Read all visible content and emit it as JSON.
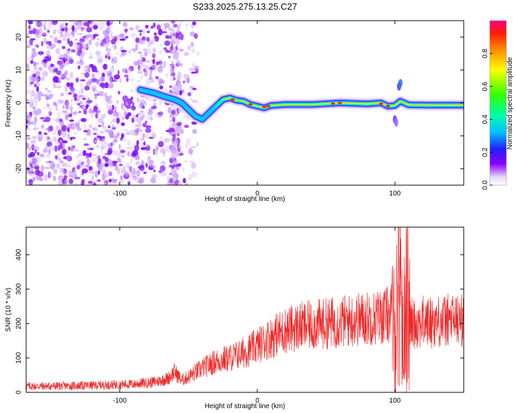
{
  "title": "S233.2025.275.13.25.C27",
  "chart_data": [
    {
      "type": "heatmap",
      "xlabel": "Height of straight line (km)",
      "ylabel": "Frequency (Hz)",
      "xlim": [
        -168,
        150
      ],
      "ylim": [
        -25,
        25
      ],
      "xticks": [
        -100,
        0,
        100
      ],
      "xtick_labels": [
        "-100",
        "0",
        "100"
      ],
      "yticks": [
        -20,
        -10,
        0,
        10,
        20
      ],
      "ytick_labels": [
        "-20",
        "-10",
        "0",
        "10",
        "20"
      ],
      "colorbar": {
        "label": "Normalized spectral amplitude",
        "range": [
          0,
          1
        ],
        "ticks": [
          0,
          0.2,
          0.4,
          0.6,
          0.8
        ],
        "tick_labels": [
          "0.0",
          "0.2",
          "0.4",
          "0.6",
          "0.8"
        ]
      },
      "ridge_line": {
        "x": [
          -85,
          -75,
          -68,
          -60,
          -55,
          -50,
          -45,
          -40,
          -35,
          -30,
          -25,
          -20,
          -15,
          -10,
          -5,
          0,
          5,
          10,
          20,
          40,
          60,
          80,
          90,
          95,
          100,
          104,
          110,
          130,
          150
        ],
        "y": [
          4,
          3,
          2,
          1,
          0,
          -2,
          -4,
          -5,
          -3,
          -1,
          1,
          1.5,
          0.8,
          0.5,
          -0.5,
          -1,
          -1.5,
          -0.8,
          -0.5,
          -0.5,
          0,
          -0.3,
          0,
          -1,
          -0.8,
          0.5,
          -0.6,
          -0.7,
          -0.7
        ]
      }
    },
    {
      "type": "line",
      "xlabel": "Height of straight line (km)",
      "ylabel": "SNR (10 * v/v)",
      "xlim": [
        -168,
        150
      ],
      "ylim": [
        0,
        480
      ],
      "xticks": [
        -100,
        0,
        100
      ],
      "xtick_labels": [
        "-100",
        "0",
        "100"
      ],
      "yticks": [
        0,
        100,
        200,
        300,
        400
      ],
      "ytick_labels": [
        "0",
        "100",
        "200",
        "300",
        "400"
      ],
      "color": "#ee2a2a",
      "series": [
        {
          "name": "SNR",
          "x": [
            -168,
            -150,
            -120,
            -90,
            -75,
            -65,
            -60,
            -55,
            -50,
            -40,
            -30,
            -20,
            -10,
            0,
            10,
            20,
            30,
            40,
            50,
            60,
            70,
            80,
            90,
            98,
            100,
            102,
            104,
            106,
            108,
            110,
            120,
            130,
            140,
            150
          ],
          "y": [
            18,
            18,
            20,
            24,
            30,
            40,
            60,
            35,
            45,
            70,
            90,
            100,
            115,
            135,
            160,
            180,
            190,
            195,
            200,
            205,
            210,
            215,
            220,
            230,
            150,
            300,
            400,
            100,
            350,
            200,
            205,
            205,
            210,
            210
          ]
        }
      ]
    }
  ]
}
